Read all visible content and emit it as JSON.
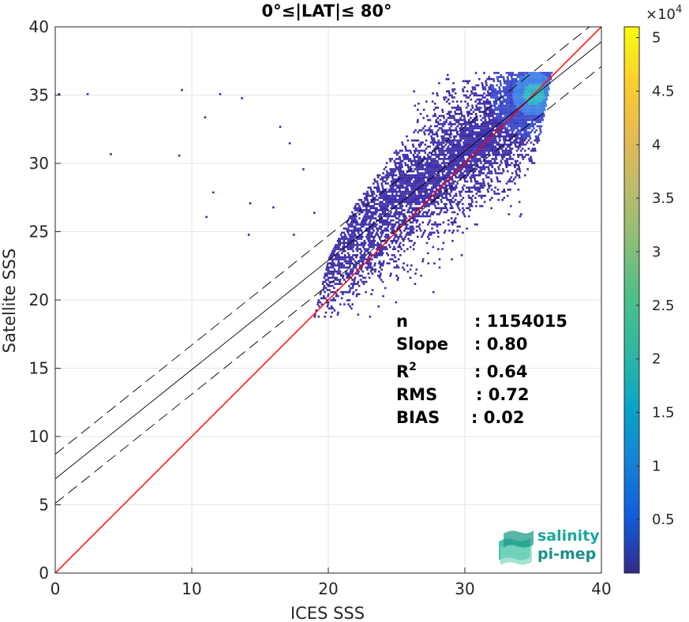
{
  "chart_data": {
    "type": "heatmap",
    "title": "0°≤|LAT|≤ 80°",
    "xlabel": "ICES SSS",
    "ylabel": "Satellite SSS",
    "xlim": [
      0,
      40
    ],
    "ylim": [
      0,
      40
    ],
    "xticks": [
      "0",
      "10",
      "20",
      "30",
      "40"
    ],
    "yticks": [
      "0",
      "5",
      "10",
      "15",
      "20",
      "25",
      "30",
      "35",
      "40"
    ],
    "grid": true,
    "colormap": "parula",
    "colorbar": {
      "range": [
        0,
        51000
      ],
      "multiplier": "×10",
      "exponent": "4",
      "ticks": [
        0.5,
        1,
        1.5,
        2,
        2.5,
        3,
        3.5,
        4,
        4.5,
        5
      ],
      "tick_labels": [
        "0.5",
        "1",
        "1.5",
        "2",
        "2.5",
        "3",
        "3.5",
        "4",
        "4.5",
        "5"
      ]
    },
    "one_to_one_line": {
      "x": [
        0,
        40
      ],
      "y": [
        0,
        40
      ],
      "color": "#ff0000"
    },
    "fit_line": {
      "slope": 0.8,
      "intercept": 6.9,
      "color": "#000000"
    },
    "fit_bounds": {
      "offset": 1.8,
      "style": "dashed",
      "color": "#000000"
    },
    "density": {
      "x_range": [
        18.5,
        37
      ],
      "y_range": [
        18.5,
        37
      ],
      "peak": [
        35,
        35
      ],
      "note": "dense cloud along the 1:1 line from about 27 to 36 PSU"
    },
    "statistics": [
      {
        "label": "n",
        "value": ": 1154015"
      },
      {
        "label": "Slope",
        "value": ": 0.80"
      },
      {
        "label": "R",
        "sup": "2",
        "value": ": 0.64"
      },
      {
        "label": "RMS",
        "value": ": 0.72"
      },
      {
        "label": "BIAS",
        "value": ": 0.02"
      }
    ]
  },
  "logo": {
    "line1": "salinity",
    "line2": "pi-mep",
    "color1": "#1aa89a",
    "color2": "#1a8f8a"
  }
}
